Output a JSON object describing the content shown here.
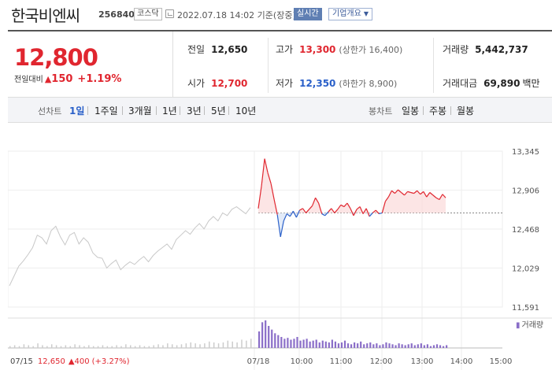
{
  "header": {
    "title": "한국비엔씨",
    "code": "256840",
    "market": "코스닥",
    "datetime": "2022.07.18 14:02 기준(장중)",
    "live_label": "실시간",
    "company_info_label": "기업개요"
  },
  "summary": {
    "current_price": "12,800",
    "change_label": "전일대비",
    "change_value": "150",
    "change_pct": "+1.19%",
    "prev_close_label": "전일",
    "prev_close": "12,650",
    "open_label": "시가",
    "open": "12,700",
    "high_label": "고가",
    "high": "13,300",
    "upper_limit_text": "(상한가 16,400)",
    "low_label": "저가",
    "low": "12,350",
    "lower_limit_text": "(하한가 8,900)",
    "volume_label": "거래량",
    "volume": "5,442,737",
    "amount_label": "거래대금",
    "amount": "69,890",
    "amount_unit": "백만"
  },
  "period_bar": {
    "line_chart_label": "선차트",
    "line_options": [
      "1일",
      "1주일",
      "3개월",
      "1년",
      "3년",
      "5년",
      "10년"
    ],
    "active_option": "1일",
    "candle_chart_label": "봉차트",
    "candle_options": [
      "일봉",
      "주봉",
      "월봉"
    ]
  },
  "chart_data": {
    "type": "line",
    "y_ticks": [
      "13,345",
      "12,906",
      "12,468",
      "12,029",
      "11,591"
    ],
    "ylim": [
      11591,
      13345
    ],
    "baseline": 12650,
    "x_ticks": [
      "07/18",
      "10:00",
      "11:00",
      "12:00",
      "13:00",
      "14:00",
      "15:00"
    ],
    "volume_legend": "거래량",
    "prev_day_summary": {
      "date": "07/15",
      "close": "12,650",
      "change": "400",
      "pct": "(+3.27%)"
    },
    "prev_day_series": [
      11830,
      11940,
      12050,
      12110,
      12180,
      12260,
      12400,
      12370,
      12300,
      12450,
      12500,
      12380,
      12290,
      12400,
      12430,
      12300,
      12370,
      12320,
      12200,
      12150,
      12140,
      12030,
      12080,
      12120,
      12010,
      12060,
      12100,
      12070,
      12120,
      12160,
      12100,
      12170,
      12220,
      12260,
      12300,
      12240,
      12350,
      12400,
      12450,
      12410,
      12480,
      12530,
      12470,
      12560,
      12610,
      12560,
      12650,
      12620,
      12690,
      12720,
      12680,
      12640,
      12710
    ],
    "today_series": [
      12700,
      12950,
      13260,
      13100,
      12980,
      12800,
      12630,
      12380,
      12560,
      12640,
      12610,
      12670,
      12600,
      12680,
      12700,
      12650,
      12690,
      12730,
      12820,
      12760,
      12640,
      12620,
      12660,
      12700,
      12650,
      12690,
      12740,
      12720,
      12760,
      12700,
      12620,
      12690,
      12720,
      12640,
      12700,
      12610,
      12650,
      12680,
      12640,
      12650,
      12780,
      12830,
      12900,
      12870,
      12910,
      12880,
      12850,
      12890,
      12880,
      12870,
      12900,
      12860,
      12890,
      12830,
      12880,
      12850,
      12820,
      12800,
      12860,
      12820
    ],
    "prev_day_volume": [
      2,
      3,
      2,
      4,
      3,
      2,
      5,
      3,
      2,
      4,
      3,
      2,
      3,
      2,
      4,
      3,
      2,
      3,
      2,
      2,
      3,
      2,
      2,
      3,
      2,
      4,
      3,
      2,
      3,
      2,
      2,
      3,
      4,
      3,
      5,
      4,
      3,
      4,
      5,
      6,
      5,
      4,
      5,
      7,
      6,
      5,
      6,
      8,
      7,
      6,
      9,
      8,
      10
    ],
    "today_volume": [
      18,
      28,
      30,
      24,
      20,
      16,
      14,
      12,
      10,
      11,
      9,
      10,
      12,
      8,
      9,
      10,
      7,
      8,
      9,
      6,
      8,
      7,
      6,
      9,
      7,
      5,
      6,
      8,
      5,
      4,
      6,
      5,
      7,
      4,
      5,
      6,
      4,
      5,
      3,
      4,
      6,
      5,
      4,
      3,
      5,
      4,
      3,
      4,
      5,
      3,
      4,
      5,
      3,
      4,
      2,
      3,
      4,
      3,
      2,
      3
    ]
  }
}
